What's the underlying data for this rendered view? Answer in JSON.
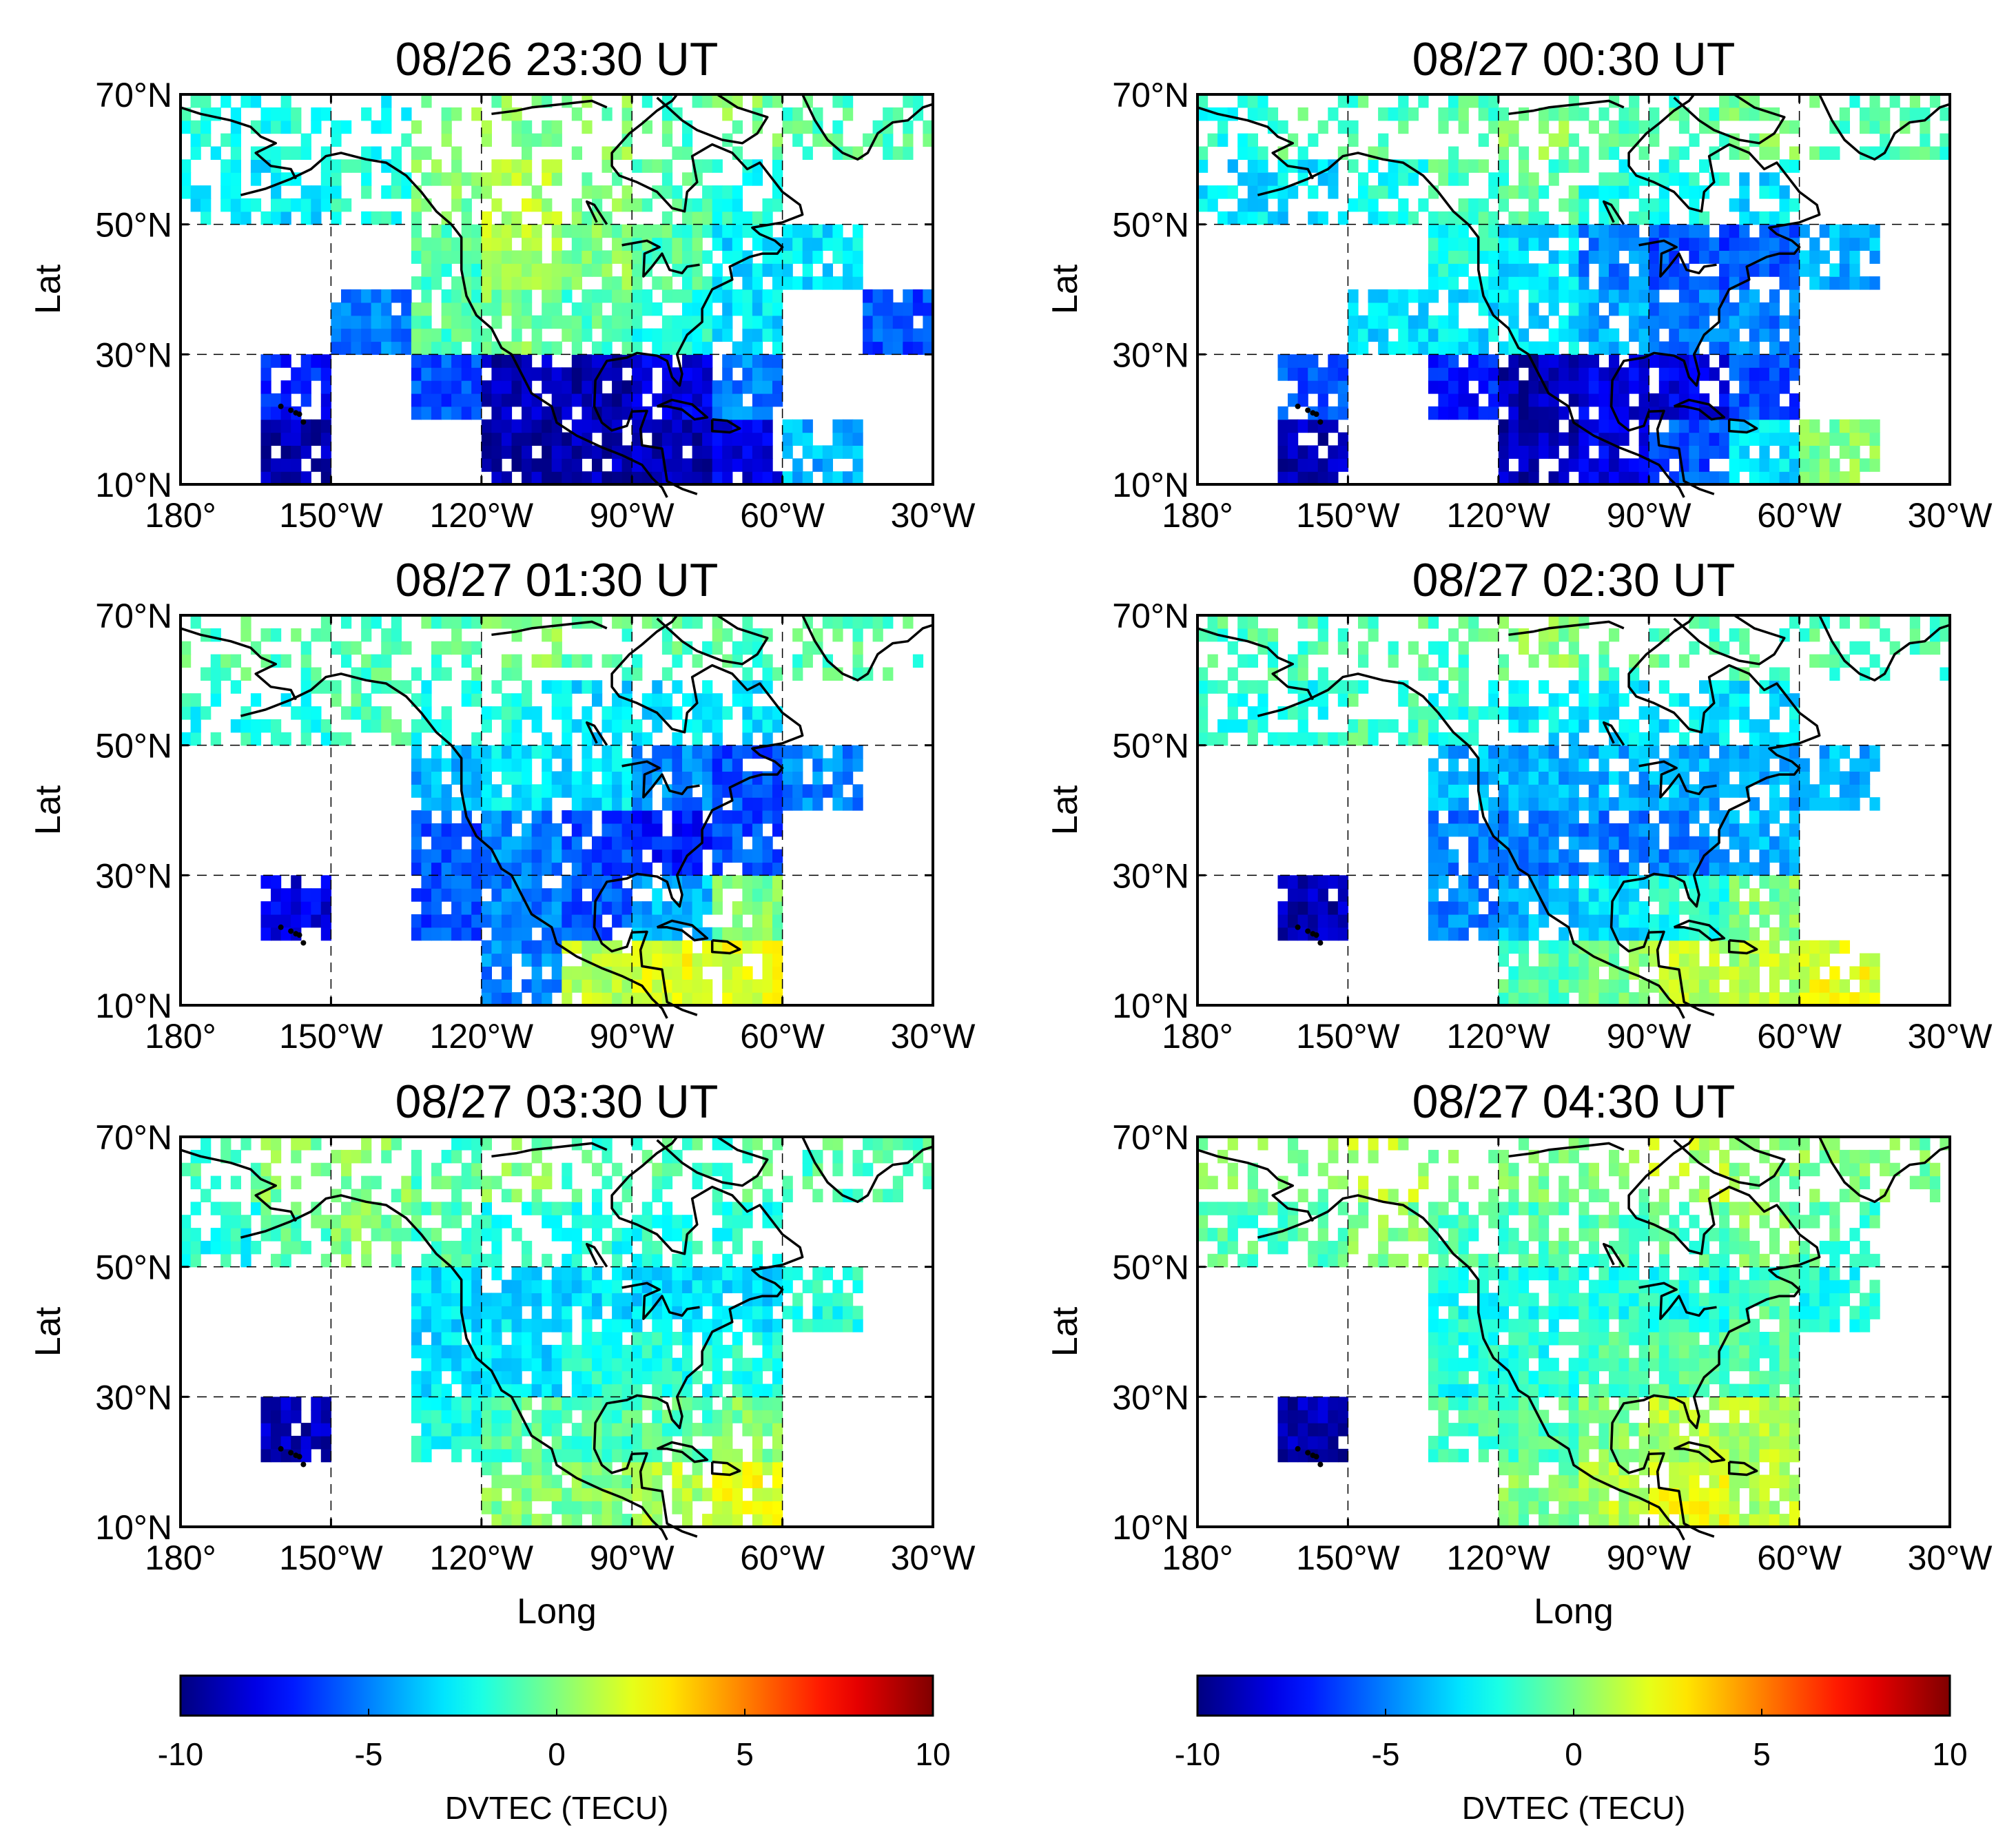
{
  "chart_data": [
    {
      "type": "heatmap",
      "title": "08/26 23:30 UT",
      "ylabel": "Lat",
      "xlabel": "",
      "lon_bins": [
        -180,
        -165,
        -150,
        -135,
        -120,
        -105,
        -90,
        -75,
        -60,
        -45,
        -30
      ],
      "lat_bins_north_to_south": [
        "60-70",
        "50-60",
        "40-50",
        "30-40",
        "20-30",
        "10-20"
      ],
      "values": [
        [
          -2,
          -2,
          -2,
          0,
          0,
          0,
          -1,
          0,
          -1,
          -1
        ],
        [
          -3,
          -3,
          -2,
          0,
          1,
          0,
          -1,
          -2,
          null,
          null
        ],
        [
          null,
          null,
          null,
          -1,
          1,
          0,
          -1,
          -3,
          -3,
          null
        ],
        [
          null,
          null,
          -5,
          -1,
          0,
          -1,
          -2,
          -3,
          null,
          -6
        ],
        [
          null,
          -7,
          null,
          -6,
          -9,
          -9,
          -8,
          -5,
          null,
          null
        ],
        [
          null,
          -9,
          null,
          null,
          -9,
          -9,
          -9,
          -8,
          -4,
          null
        ]
      ]
    },
    {
      "type": "heatmap",
      "title": "08/27 00:30 UT",
      "ylabel": "Lat",
      "xlabel": "",
      "values": [
        [
          -2,
          -1,
          -1,
          -1,
          0,
          -1,
          -1,
          0,
          -1,
          -1
        ],
        [
          -3,
          -3,
          -2,
          -1,
          -1,
          -2,
          -2,
          -3,
          null,
          null
        ],
        [
          null,
          null,
          null,
          -2,
          -3,
          -5,
          -6,
          -6,
          -4,
          null
        ],
        [
          null,
          null,
          -3,
          -3,
          -3,
          -4,
          -5,
          -5,
          null,
          null
        ],
        [
          null,
          -6,
          null,
          -7,
          -9,
          -8,
          -8,
          -6,
          null,
          null
        ],
        [
          null,
          -9,
          null,
          null,
          -9,
          -8,
          -6,
          -3,
          0,
          null
        ]
      ]
    },
    {
      "type": "heatmap",
      "title": "08/27 01:30 UT",
      "ylabel": "Lat",
      "xlabel": "",
      "values": [
        [
          -1,
          -1,
          -1,
          -1,
          0,
          -1,
          -1,
          -1,
          -1,
          -1
        ],
        [
          -2,
          -2,
          -1,
          -2,
          -2,
          -3,
          -3,
          -3,
          null,
          null
        ],
        [
          null,
          null,
          null,
          -4,
          -3,
          -3,
          -5,
          -6,
          -5,
          null
        ],
        [
          null,
          null,
          null,
          -6,
          -5,
          -6,
          -7,
          -6,
          null,
          null
        ],
        [
          null,
          -8,
          null,
          -6,
          -5,
          -6,
          -4,
          0,
          null,
          null
        ],
        [
          null,
          null,
          null,
          null,
          -5,
          1,
          2,
          2,
          null,
          null
        ]
      ]
    },
    {
      "type": "heatmap",
      "title": "08/27 02:30 UT",
      "ylabel": "Lat",
      "xlabel": "",
      "values": [
        [
          -1,
          -1,
          -1,
          -1,
          0,
          -1,
          -1,
          -1,
          -1,
          -1
        ],
        [
          -2,
          -2,
          -1,
          -2,
          -3,
          -3,
          -3,
          -3,
          null,
          null
        ],
        [
          null,
          null,
          null,
          -4,
          -4,
          -4,
          -4,
          -4,
          -4,
          null
        ],
        [
          null,
          null,
          null,
          -5,
          -5,
          -5,
          -5,
          -4,
          null,
          null
        ],
        [
          null,
          -9,
          null,
          -5,
          -4,
          -3,
          -2,
          0,
          null,
          null
        ],
        [
          null,
          null,
          null,
          null,
          -1,
          0,
          1,
          1,
          2,
          null
        ]
      ]
    },
    {
      "type": "heatmap",
      "title": "08/27 03:30 UT",
      "ylabel": "Lat",
      "xlabel": "Long",
      "values": [
        [
          -1,
          0,
          0,
          -1,
          0,
          -1,
          -1,
          -1,
          -1,
          -1
        ],
        [
          -2,
          -1,
          0,
          -1,
          -2,
          -2,
          -2,
          -2,
          null,
          null
        ],
        [
          null,
          null,
          null,
          -3,
          -3,
          -3,
          -3,
          -3,
          -2,
          null
        ],
        [
          null,
          null,
          null,
          -3,
          -3,
          -2,
          -2,
          -2,
          null,
          null
        ],
        [
          null,
          -9,
          null,
          -2,
          -1,
          -1,
          -1,
          0,
          null,
          null
        ],
        [
          null,
          null,
          null,
          null,
          0,
          0,
          1,
          2,
          null,
          null
        ]
      ]
    },
    {
      "type": "heatmap",
      "title": "08/27 04:30 UT",
      "ylabel": "Lat",
      "xlabel": "Long",
      "values": [
        [
          0,
          0,
          1,
          0,
          0,
          0,
          1,
          0,
          0,
          0
        ],
        [
          -1,
          -1,
          0,
          -1,
          -1,
          -1,
          -1,
          0,
          -1,
          null
        ],
        [
          null,
          null,
          null,
          -2,
          -2,
          -2,
          -2,
          -1,
          -2,
          null
        ],
        [
          null,
          null,
          null,
          -2,
          -2,
          -1,
          -1,
          -1,
          null,
          null
        ],
        [
          null,
          -9,
          null,
          -1,
          -1,
          0,
          1,
          1,
          null,
          null
        ],
        [
          null,
          null,
          null,
          null,
          0,
          1,
          2,
          1,
          null,
          null
        ]
      ]
    }
  ],
  "axes": {
    "xlim": [
      -180,
      -30
    ],
    "ylim": [
      10,
      70
    ],
    "x_ticks": [
      "180°",
      "150°W",
      "120°W",
      "90°W",
      "60°W",
      "30°W"
    ],
    "y_ticks": [
      "70°N",
      "50°N",
      "30°N",
      "10°N"
    ],
    "y_tick_values": [
      70,
      50,
      30,
      10
    ],
    "x_tick_values": [
      -180,
      -150,
      -120,
      -90,
      -60,
      -30
    ],
    "grid": "dashed"
  },
  "colorbar": {
    "label": "DVTEC (TECU)",
    "range": [
      -10,
      10
    ],
    "ticks": [
      "-10",
      "-5",
      "0",
      "5",
      "10"
    ],
    "colormap": "jet"
  }
}
